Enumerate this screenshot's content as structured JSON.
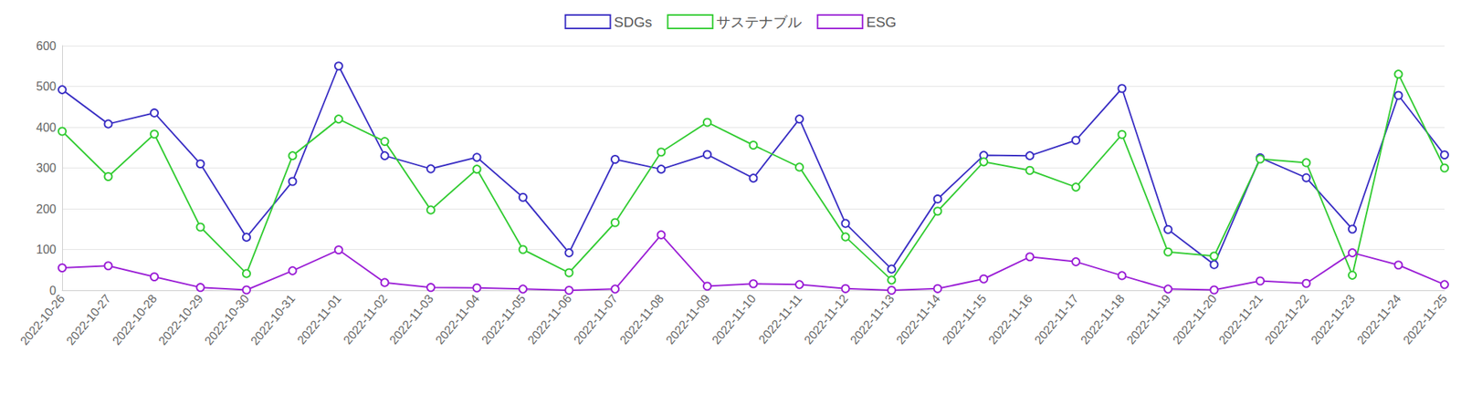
{
  "chart_data": {
    "type": "line",
    "categories": [
      "2022-10-26",
      "2022-10-27",
      "2022-10-28",
      "2022-10-29",
      "2022-10-30",
      "2022-10-31",
      "2022-11-01",
      "2022-11-02",
      "2022-11-03",
      "2022-11-04",
      "2022-11-05",
      "2022-11-06",
      "2022-11-07",
      "2022-11-08",
      "2022-11-09",
      "2022-11-10",
      "2022-11-11",
      "2022-11-12",
      "2022-11-13",
      "2022-11-14",
      "2022-11-15",
      "2022-11-16",
      "2022-11-17",
      "2022-11-18",
      "2022-11-19",
      "2022-11-20",
      "2022-11-21",
      "2022-11-22",
      "2022-11-23",
      "2022-11-24",
      "2022-11-25"
    ],
    "series": [
      {
        "name": "SDGs",
        "color": "#3a2fc4",
        "values": [
          492,
          408,
          435,
          310,
          130,
          267,
          550,
          330,
          298,
          326,
          228,
          92,
          321,
          297,
          333,
          275,
          420,
          164,
          52,
          224,
          331,
          330,
          368,
          495,
          149,
          63,
          325,
          276,
          150,
          478,
          332
        ]
      },
      {
        "name": "サステナブル",
        "color": "#33cc33",
        "values": [
          390,
          279,
          383,
          155,
          41,
          330,
          420,
          365,
          197,
          297,
          100,
          43,
          166,
          339,
          412,
          356,
          302,
          131,
          25,
          194,
          315,
          294,
          253,
          382,
          94,
          84,
          322,
          313,
          37,
          530,
          300
        ]
      },
      {
        "name": "ESG",
        "color": "#9b1fd6",
        "values": [
          55,
          60,
          33,
          7,
          1,
          48,
          99,
          19,
          7,
          6,
          3,
          0,
          3,
          136,
          10,
          16,
          14,
          4,
          0,
          4,
          28,
          82,
          70,
          36,
          3,
          1,
          23,
          17,
          92,
          62,
          14
        ]
      }
    ],
    "ylim": [
      0,
      600
    ],
    "yticks": [
      0,
      100,
      200,
      300,
      400,
      500,
      600
    ],
    "grid": true,
    "legend": "top",
    "marker": "emptyCircle"
  }
}
